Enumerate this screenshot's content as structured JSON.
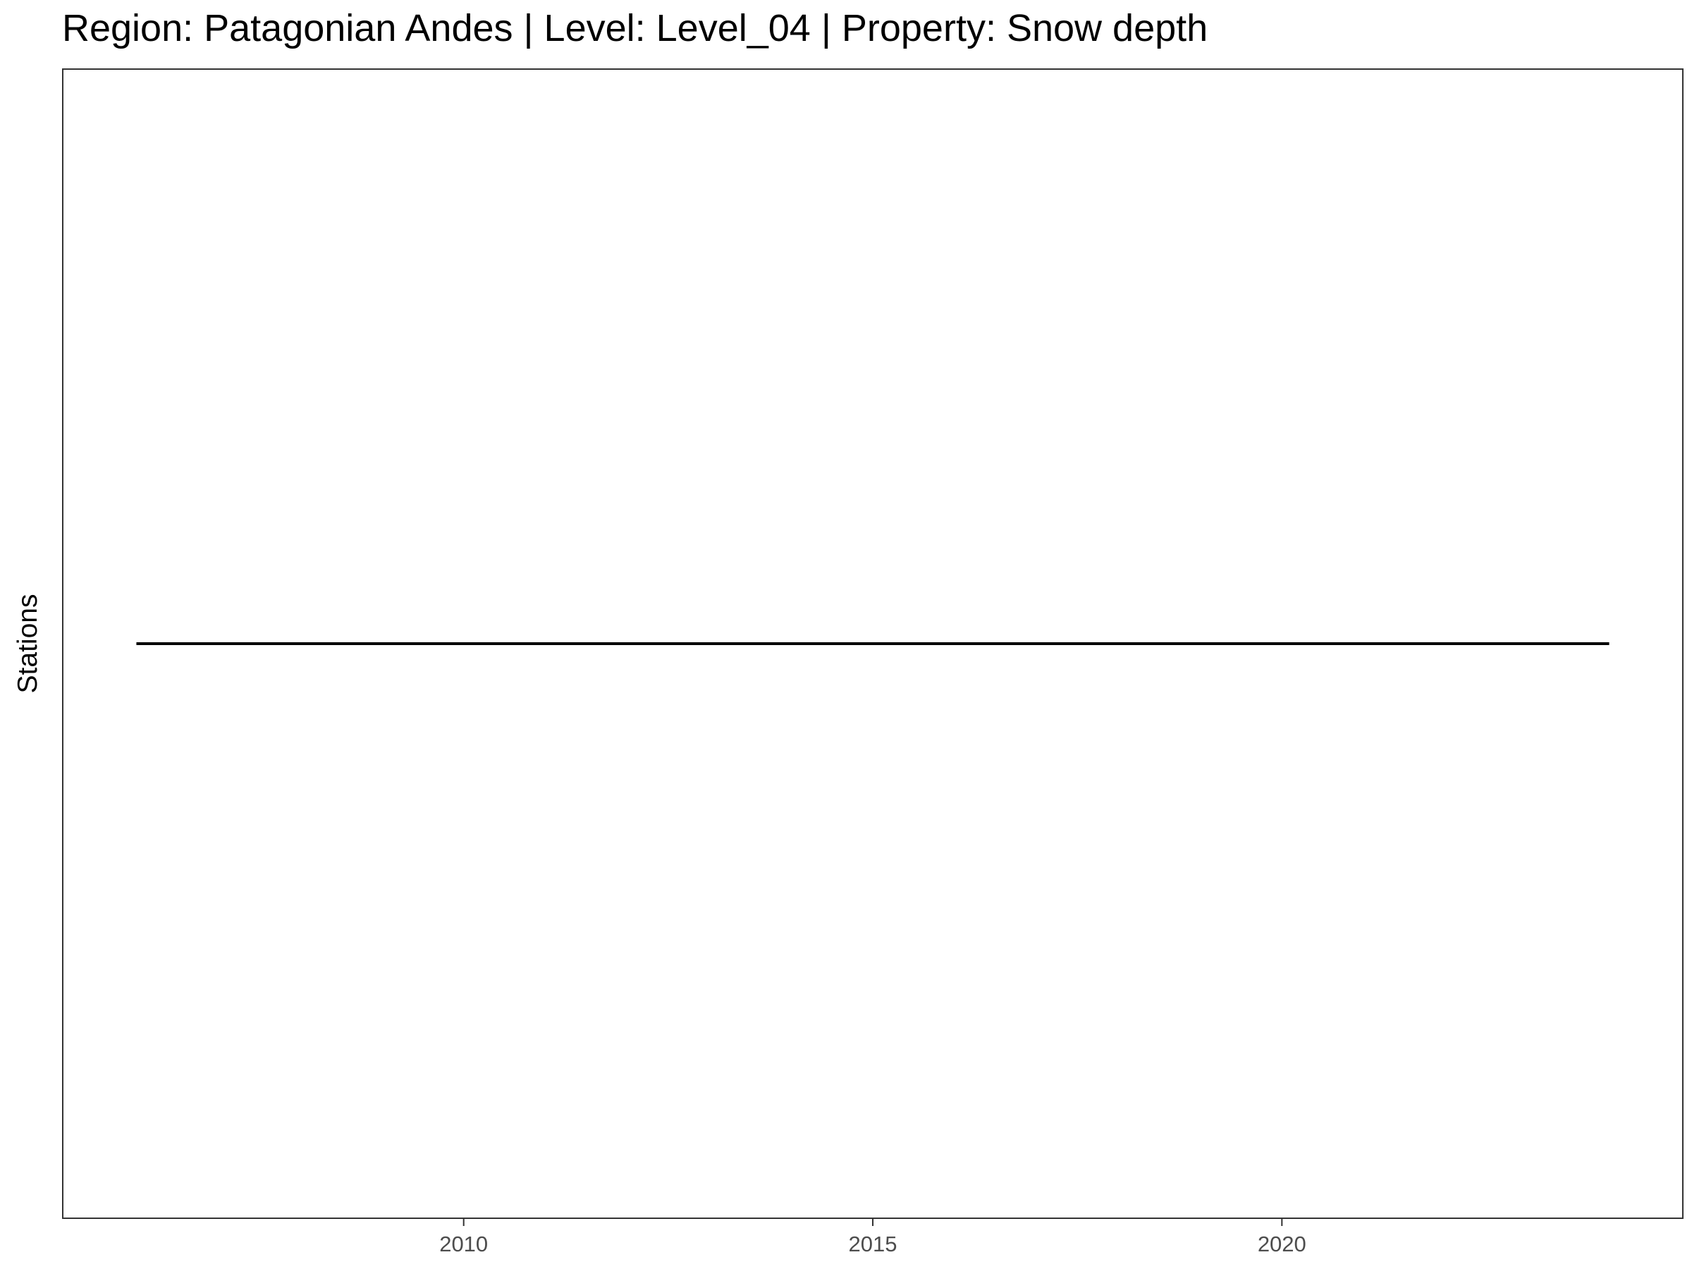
{
  "chart_data": {
    "type": "line",
    "title": "Region: Patagonian Andes | Level: Level_04 | Property: Snow depth",
    "xlabel": "",
    "ylabel": "Stations",
    "xlim": [
      2005.1,
      2024.9
    ],
    "ylim": [
      0,
      1
    ],
    "x_ticks": [
      2010,
      2015,
      2020
    ],
    "x_tick_labels": [
      "2010",
      "2015",
      "2020"
    ],
    "grid": false,
    "legend": "none",
    "series": [
      {
        "x": [
          2006,
          2024
        ],
        "y": [
          0.5,
          0.5
        ],
        "color": "#000000"
      }
    ]
  }
}
